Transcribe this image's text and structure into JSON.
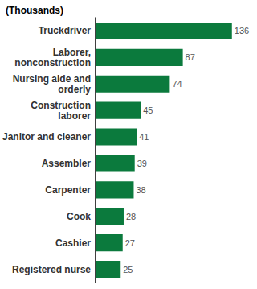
{
  "chart_data": {
    "type": "bar",
    "title": "(Thousands)",
    "orientation": "horizontal",
    "categories": [
      "Truckdriver",
      "Laborer,\nnonconstruction",
      "Nursing aide and\norderly",
      "Construction\nlaborer",
      "Janitor and cleaner",
      "Assembler",
      "Carpenter",
      "Cook",
      "Cashier",
      "Registered nurse"
    ],
    "values": [
      136,
      87,
      74,
      45,
      41,
      39,
      38,
      28,
      27,
      25
    ],
    "color": "#0b7a3d",
    "xlim": [
      0,
      145
    ],
    "data_labels": true,
    "tick_labels": "y",
    "grid": false
  }
}
